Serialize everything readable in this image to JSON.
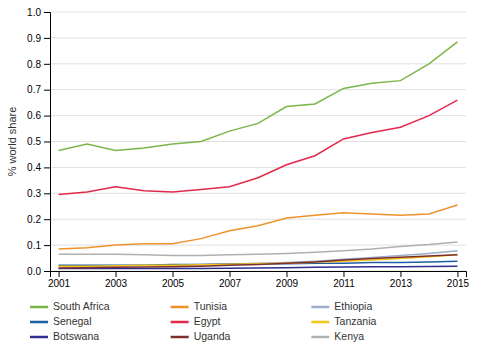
{
  "chart_data": {
    "type": "line",
    "y_label": "% world share",
    "x": [
      2001,
      2002,
      2003,
      2004,
      2005,
      2006,
      2007,
      2008,
      2009,
      2010,
      2011,
      2012,
      2013,
      2014,
      2015
    ],
    "series": [
      {
        "name": "South Africa",
        "color": "#7ab648",
        "values": [
          0.465,
          0.49,
          0.465,
          0.475,
          0.49,
          0.5,
          0.54,
          0.57,
          0.635,
          0.645,
          0.705,
          0.725,
          0.735,
          0.8,
          0.885
        ]
      },
      {
        "name": "Tunisia",
        "color": "#f0922b",
        "values": [
          0.085,
          0.09,
          0.1,
          0.105,
          0.105,
          0.125,
          0.155,
          0.175,
          0.205,
          0.215,
          0.225,
          0.22,
          0.215,
          0.22,
          0.255
        ]
      },
      {
        "name": "Ethiopia",
        "color": "#9eadc8",
        "values": [
          0.018,
          0.018,
          0.02,
          0.022,
          0.022,
          0.025,
          0.027,
          0.03,
          0.033,
          0.038,
          0.045,
          0.052,
          0.06,
          0.068,
          0.078
        ]
      },
      {
        "name": "Senegal",
        "color": "#1f5fa6",
        "values": [
          0.022,
          0.022,
          0.022,
          0.022,
          0.025,
          0.025,
          0.027,
          0.028,
          0.028,
          0.03,
          0.03,
          0.033,
          0.033,
          0.035,
          0.038
        ]
      },
      {
        "name": "Egypt",
        "color": "#e3294b",
        "values": [
          0.295,
          0.305,
          0.325,
          0.31,
          0.305,
          0.315,
          0.325,
          0.36,
          0.41,
          0.445,
          0.51,
          0.535,
          0.555,
          0.6,
          0.66
        ]
      },
      {
        "name": "Tanzania",
        "color": "#f5c518",
        "values": [
          0.018,
          0.018,
          0.02,
          0.022,
          0.022,
          0.024,
          0.026,
          0.028,
          0.03,
          0.034,
          0.038,
          0.042,
          0.048,
          0.055,
          0.063
        ]
      },
      {
        "name": "Botswana",
        "color": "#2e2f8e",
        "values": [
          0.01,
          0.01,
          0.01,
          0.01,
          0.01,
          0.01,
          0.011,
          0.012,
          0.013,
          0.014,
          0.015,
          0.016,
          0.016,
          0.017,
          0.018
        ]
      },
      {
        "name": "Uganda",
        "color": "#7b2e2e",
        "values": [
          0.012,
          0.013,
          0.014,
          0.015,
          0.016,
          0.018,
          0.022,
          0.025,
          0.03,
          0.035,
          0.042,
          0.048,
          0.053,
          0.058,
          0.063
        ]
      },
      {
        "name": "Kenya",
        "color": "#b0b0b0",
        "values": [
          0.065,
          0.065,
          0.065,
          0.063,
          0.06,
          0.06,
          0.063,
          0.065,
          0.068,
          0.072,
          0.078,
          0.085,
          0.095,
          0.102,
          0.112
        ]
      }
    ],
    "xlim": [
      2000.7,
      2015.3
    ],
    "xticks": [
      2001,
      2003,
      2005,
      2007,
      2009,
      2011,
      2013,
      2015
    ],
    "ylim": [
      0,
      1.0
    ],
    "yticks": [
      {
        "value": 0,
        "label": "0.0"
      },
      0.1,
      0.2,
      0.3,
      0.4,
      0.5,
      0.6,
      0.7,
      0.8,
      0.9,
      {
        "value": 1,
        "label": "1.0"
      }
    ],
    "grid": true,
    "legend": "bottom"
  }
}
